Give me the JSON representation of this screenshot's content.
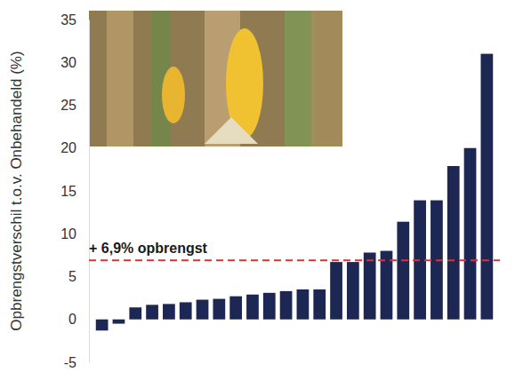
{
  "chart_data": {
    "type": "bar",
    "y_label": "Opbrengstverschil t.o.v. Onbehandeld (%)",
    "categories": [
      null,
      null,
      null,
      null,
      null,
      null,
      null,
      null,
      null,
      null,
      null,
      null,
      null,
      null,
      null,
      null,
      null,
      null,
      null,
      null,
      null,
      null,
      null,
      null
    ],
    "values": [
      -1.3,
      -0.5,
      1.4,
      1.7,
      1.8,
      2.0,
      2.3,
      2.4,
      2.7,
      2.9,
      3.1,
      3.3,
      3.5,
      3.5,
      6.7,
      6.7,
      7.8,
      8.0,
      11.4,
      13.9,
      13.9,
      17.9,
      20.0,
      31.0
    ],
    "color": "#1c2754",
    "ylim": [
      -5,
      35
    ],
    "yticks": [
      -5,
      0,
      5,
      10,
      15,
      20,
      25,
      30,
      35
    ],
    "grid": false,
    "tick_labels": "y",
    "annotations": [
      {
        "text": "+ 6,9% opbrengst",
        "y": 6.9,
        "color": "#e0312f",
        "line_style": "dashed"
      }
    ]
  }
}
